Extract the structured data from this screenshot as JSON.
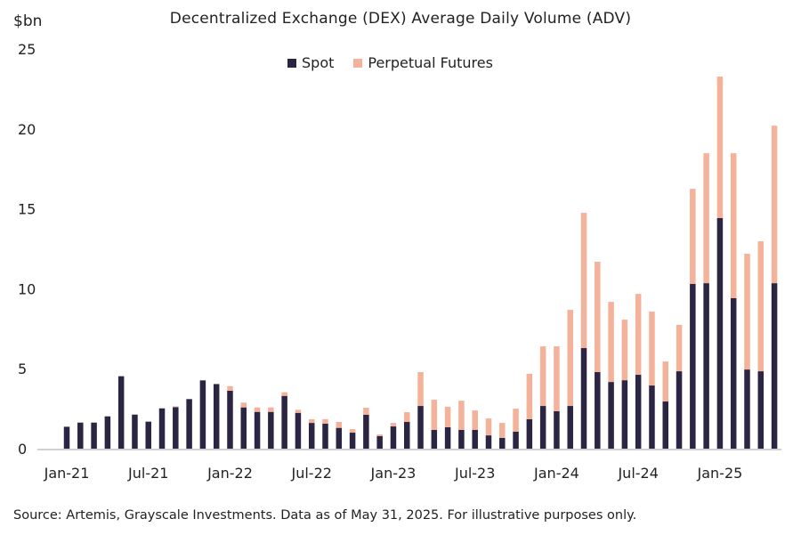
{
  "chart_data": {
    "type": "bar",
    "stacked": true,
    "title": "Decentralized Exchange (DEX) Average Daily Volume (ADV)",
    "ylabel": "$bn",
    "xlabel": "",
    "ylim": [
      0,
      25
    ],
    "yticks": [
      0,
      5,
      10,
      15,
      20,
      25
    ],
    "grid": false,
    "legend_position": "top-center",
    "categories": [
      "Jan-21",
      "Feb-21",
      "Mar-21",
      "Apr-21",
      "May-21",
      "Jun-21",
      "Jul-21",
      "Aug-21",
      "Sep-21",
      "Oct-21",
      "Nov-21",
      "Dec-21",
      "Jan-22",
      "Feb-22",
      "Mar-22",
      "Apr-22",
      "May-22",
      "Jun-22",
      "Jul-22",
      "Aug-22",
      "Sep-22",
      "Oct-22",
      "Nov-22",
      "Dec-22",
      "Jan-23",
      "Feb-23",
      "Mar-23",
      "Apr-23",
      "May-23",
      "Jun-23",
      "Jul-23",
      "Aug-23",
      "Sep-23",
      "Oct-23",
      "Nov-23",
      "Dec-23",
      "Jan-24",
      "Feb-24",
      "Mar-24",
      "Apr-24",
      "May-24",
      "Jun-24",
      "Jul-24",
      "Aug-24",
      "Sep-24",
      "Oct-24",
      "Nov-24",
      "Dec-24",
      "Jan-25",
      "Feb-25",
      "Mar-25",
      "Apr-25",
      "May-25"
    ],
    "xtick_labels": [
      "Jan-21",
      "Jul-21",
      "Jan-22",
      "Jul-22",
      "Jan-23",
      "Jul-23",
      "Jan-24",
      "Jul-24",
      "Jan-25"
    ],
    "series": [
      {
        "name": "Spot",
        "color": "#2b2442",
        "values": [
          1.37,
          1.63,
          1.63,
          2.02,
          4.53,
          2.13,
          1.69,
          2.52,
          2.6,
          3.1,
          4.27,
          4.04,
          3.62,
          2.58,
          2.3,
          2.3,
          3.3,
          2.24,
          1.61,
          1.56,
          1.3,
          1.0,
          2.12,
          0.78,
          1.39,
          1.67,
          2.67,
          1.17,
          1.34,
          1.17,
          1.17,
          0.83,
          0.67,
          1.06,
          1.84,
          2.67,
          2.34,
          2.67,
          6.29,
          4.79,
          4.17,
          4.28,
          4.62,
          3.95,
          2.95,
          4.84,
          10.3,
          10.35,
          14.42,
          9.41,
          4.95,
          4.84,
          10.35
        ]
      },
      {
        "name": "Perpetual Futures",
        "color": "#f5b29a",
        "values": [
          0,
          0,
          0,
          0,
          0,
          0,
          0,
          0,
          0.05,
          0,
          0,
          0,
          0.29,
          0.3,
          0.28,
          0.28,
          0.23,
          0.19,
          0.23,
          0.28,
          0.37,
          0.22,
          0.44,
          0.11,
          0.22,
          0.61,
          2.12,
          1.89,
          1.28,
          1.83,
          1.22,
          1.06,
          0.94,
          1.44,
          2.84,
          3.73,
          4.06,
          6.01,
          8.46,
          6.9,
          5.01,
          3.79,
          5.06,
          4.62,
          2.5,
          2.9,
          5.95,
          8.13,
          8.85,
          9.07,
          7.24,
          8.13,
          9.85
        ]
      }
    ]
  },
  "source": "Source: Artemis, Grayscale Investments. Data as of May 31, 2025. For illustrative purposes only."
}
